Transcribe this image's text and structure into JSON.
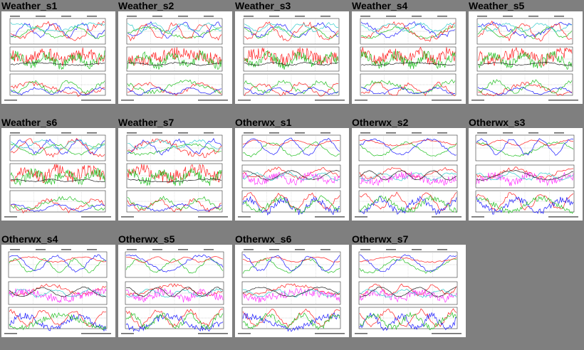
{
  "colors": {
    "page_background": "#7f7f7f",
    "thumb_background": "#ffffff",
    "series_red": "#ff2020",
    "series_green": "#22c022",
    "series_blue": "#1a1aff",
    "series_cyan": "#33cccc",
    "series_magenta": "#ff33ff",
    "series_black": "#222222"
  },
  "thumbnails": [
    {
      "label": "Weather_s1",
      "kind": "weather"
    },
    {
      "label": "Weather_s2",
      "kind": "weather"
    },
    {
      "label": "Weather_s3",
      "kind": "weather"
    },
    {
      "label": "Weather_s4",
      "kind": "weather"
    },
    {
      "label": "Weather_s5",
      "kind": "weather"
    },
    {
      "label": "Weather_s6",
      "kind": "weather"
    },
    {
      "label": "Weather_s7",
      "kind": "weather"
    },
    {
      "label": "Otherwx_s1",
      "kind": "otherwx"
    },
    {
      "label": "Otherwx_s2",
      "kind": "otherwx"
    },
    {
      "label": "Otherwx_s3",
      "kind": "otherwx"
    },
    {
      "label": "Otherwx_s4",
      "kind": "otherwx"
    },
    {
      "label": "Otherwx_s5",
      "kind": "otherwx"
    },
    {
      "label": "Otherwx_s6",
      "kind": "otherwx"
    },
    {
      "label": "Otherwx_s7",
      "kind": "otherwx"
    }
  ]
}
